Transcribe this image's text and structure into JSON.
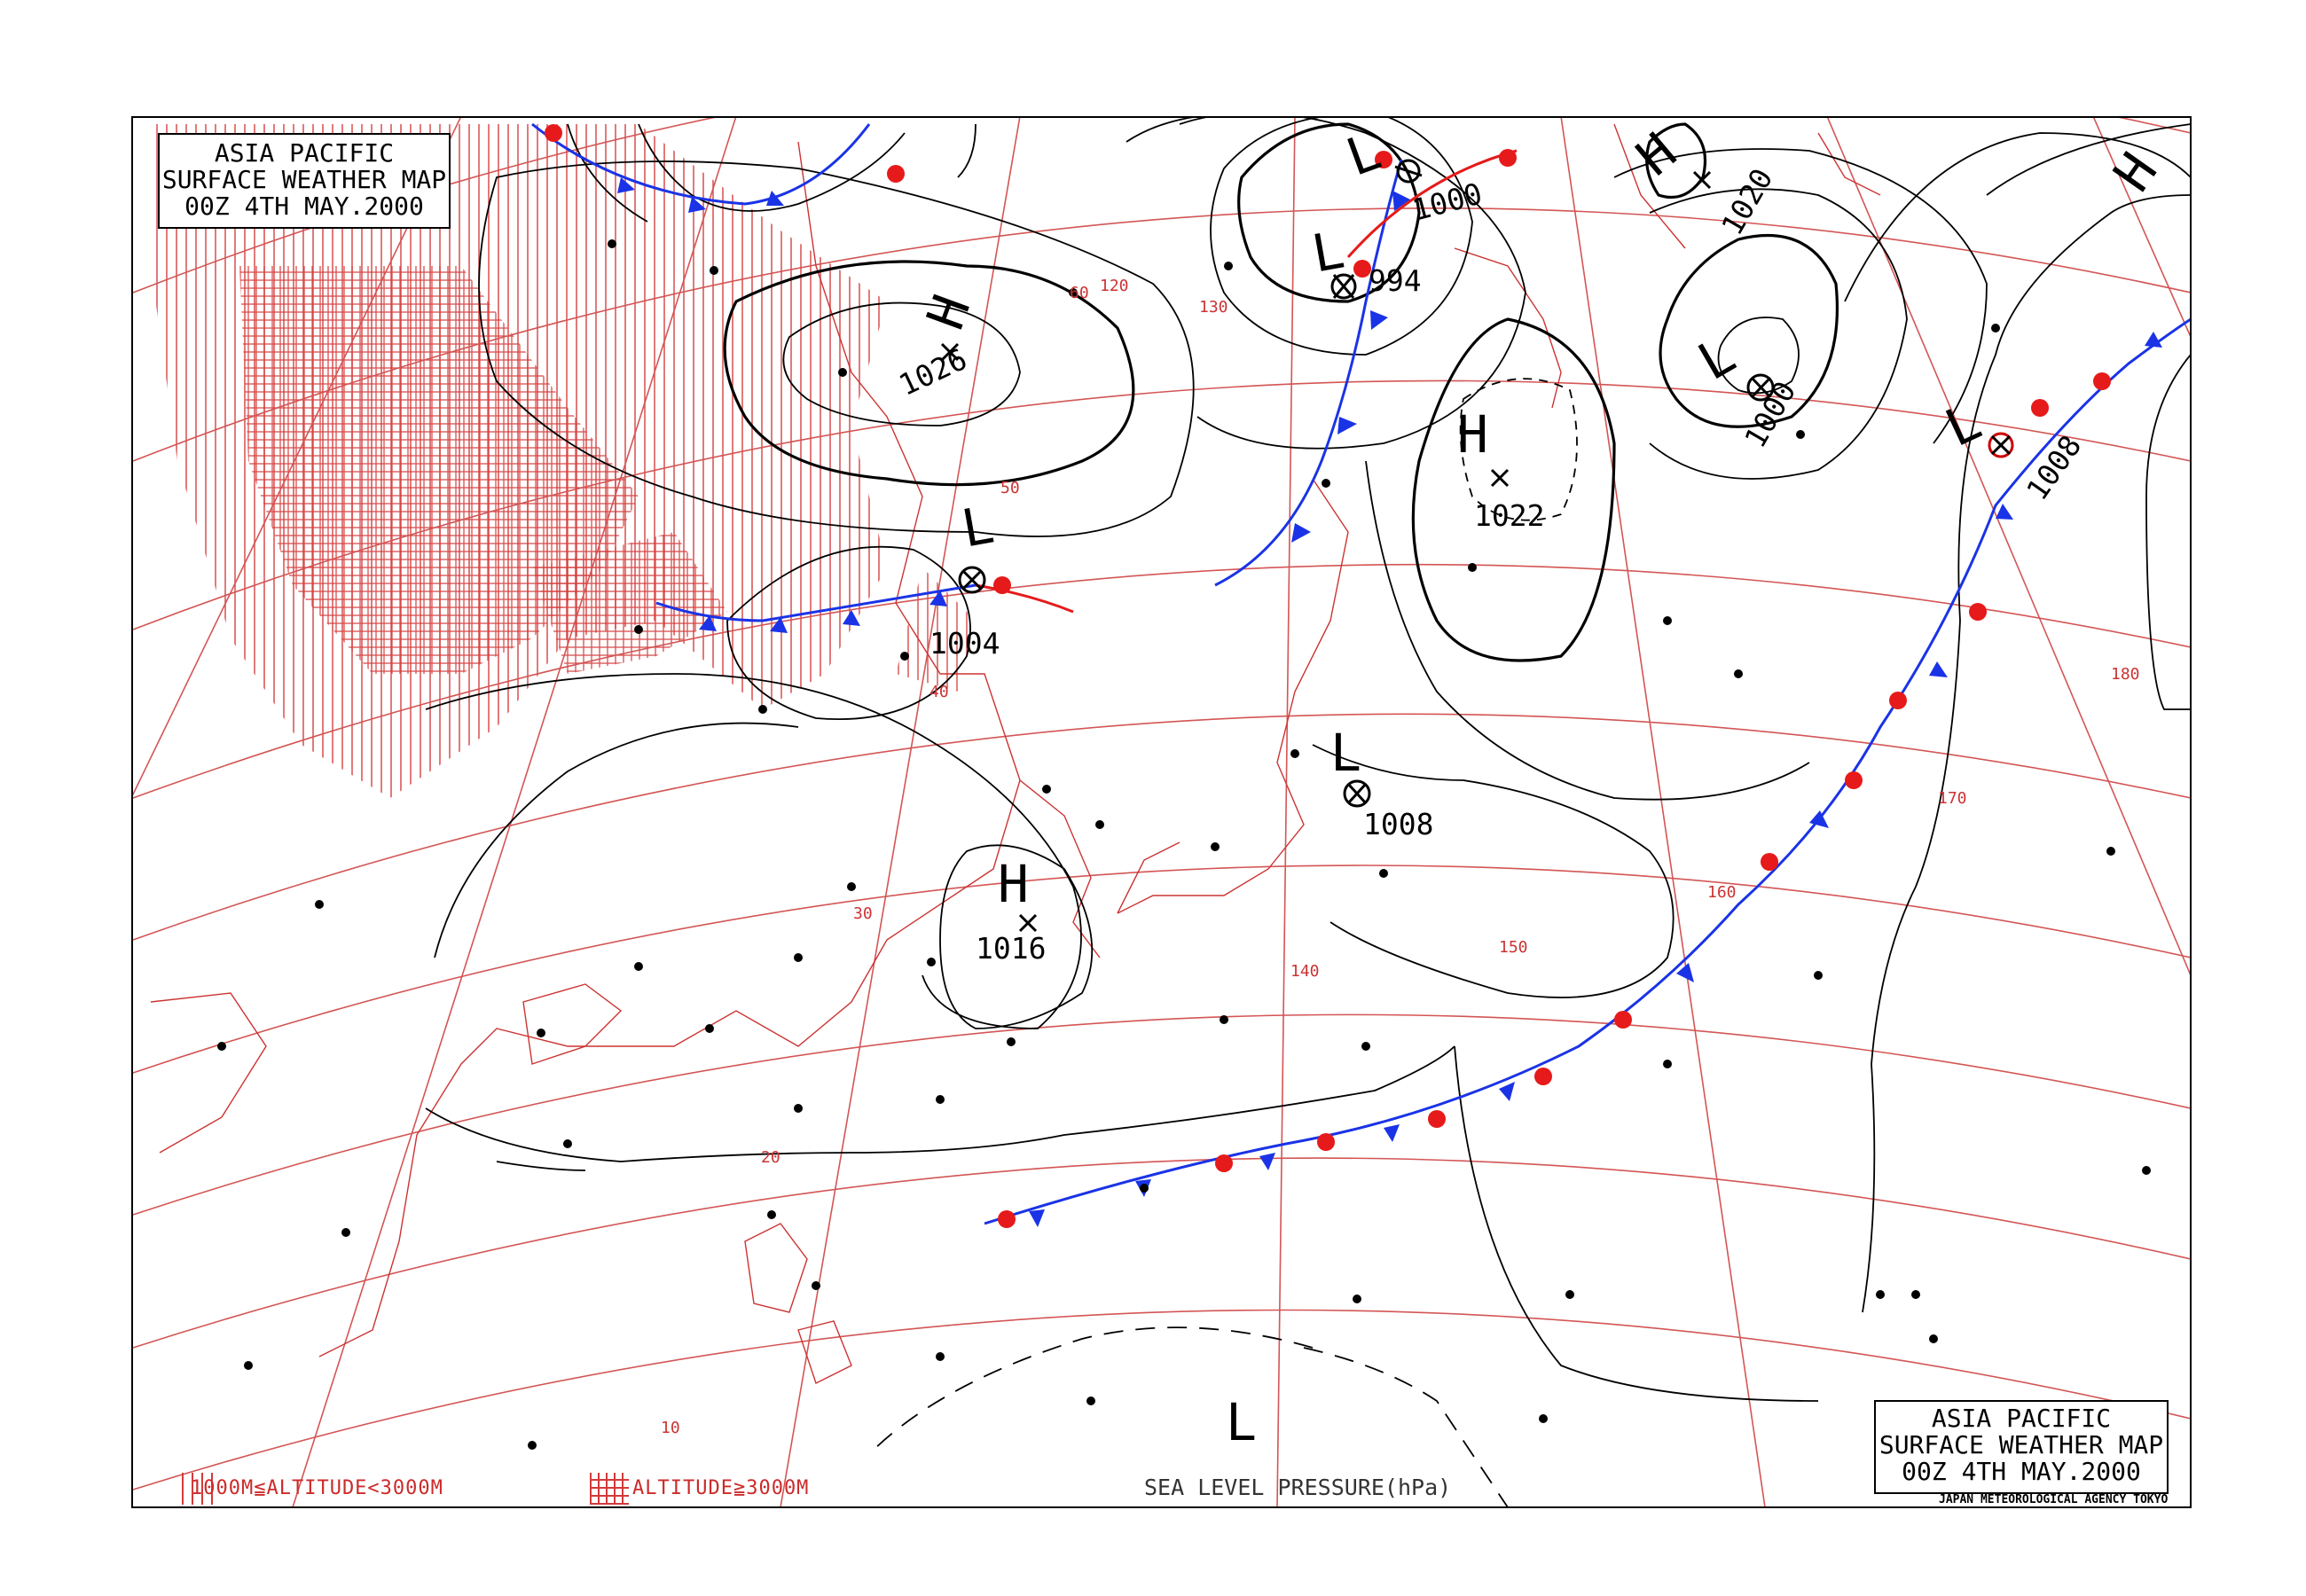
{
  "title_box": {
    "line1": "ASIA PACIFIC",
    "line2": "SURFACE WEATHER MAP",
    "line3": "00Z  4TH MAY.2000"
  },
  "legend": {
    "range_1": "1000M≦ALTITUDE<3000M",
    "range_2": "ALTITUDE≧3000M",
    "pressure_label": "SEA LEVEL PRESSURE(hPa)",
    "agency": "JAPAN METEOROLOGICAL AGENCY TOKYO"
  },
  "pressure_systems": [
    {
      "type": "H",
      "value": "1026"
    },
    {
      "type": "L",
      "value": "1004"
    },
    {
      "type": "H",
      "value": "1016"
    },
    {
      "type": "L",
      "value": "994"
    },
    {
      "type": "L",
      "value": "1000"
    },
    {
      "type": "H",
      "value": "1022"
    },
    {
      "type": "L",
      "value": "1008"
    },
    {
      "type": "H",
      "value": "1020"
    },
    {
      "type": "L",
      "value": "1000"
    },
    {
      "type": "L",
      "value": "1008"
    },
    {
      "type": "L",
      "value": ""
    },
    {
      "type": "H",
      "value": ""
    }
  ],
  "grid_labels": {
    "latitudes": [
      "10",
      "20",
      "30",
      "40",
      "50",
      "60"
    ],
    "longitudes": [
      "120",
      "130",
      "140",
      "150",
      "160",
      "170",
      "180"
    ]
  },
  "colors": {
    "cold_front": "#1a33e6",
    "warm_front": "#e61a1a",
    "grid": "#d45555",
    "isobar": "#000000"
  }
}
